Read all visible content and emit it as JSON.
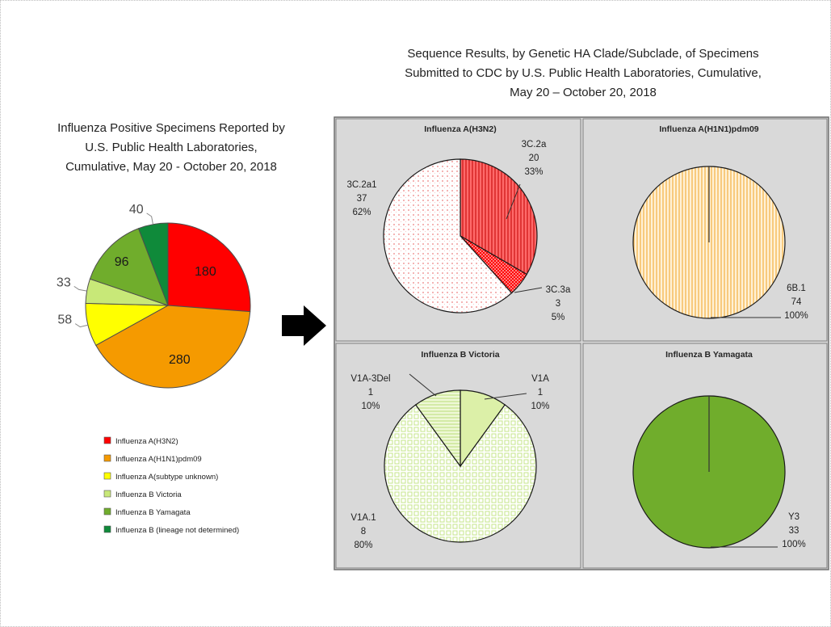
{
  "colors": {
    "h3n2": "#ff0000",
    "h1n1": "#f59a00",
    "a_unknown": "#ffff00",
    "b_victoria": "#c8e878",
    "b_yamagata": "#70ad2c",
    "b_lineage": "#0f8a3a",
    "panel_bg": "#d9d9d9",
    "h3n2_light": "#fde3e3",
    "h1n1_light": "#fde8c4",
    "vic_light": "#f6fbe6"
  },
  "left_title_lines": [
    "Influenza Positive Specimens Reported by",
    "U.S. Public Health Laboratories,",
    "Cumulative, May 20 - October 20, 2018"
  ],
  "right_title_lines": [
    "Sequence Results, by Genetic HA Clade/Subclade, of Specimens",
    "Submitted to CDC by U.S. Public Health Laboratories, Cumulative,",
    "May 20 – October 20, 2018"
  ],
  "chart_data": [
    {
      "type": "pie",
      "title": "Influenza Positive Specimens Reported by U.S. Public Health Laboratories, Cumulative, May 20 - October 20, 2018",
      "categories": [
        "Influenza A(H3N2)",
        "Influenza A(H1N1)pdm09",
        "Influenza A(subtype unknown)",
        "Influenza B Victoria",
        "Influenza B Yamagata",
        "Influenza B (lineage not determined)"
      ],
      "values": [
        180,
        280,
        58,
        33,
        96,
        40
      ],
      "data_labels": [
        "180",
        "280",
        "58",
        "33",
        "96",
        "40"
      ],
      "legend_position": "bottom"
    },
    {
      "type": "pie",
      "title": "Influenza A(H3N2)",
      "categories": [
        "3C.2a",
        "3C.3a",
        "3C.2a1"
      ],
      "values": [
        20,
        3,
        37
      ],
      "percents": [
        "33%",
        "5%",
        "62%"
      ]
    },
    {
      "type": "pie",
      "title": "Influenza A(H1N1)pdm09",
      "categories": [
        "6B.1"
      ],
      "values": [
        74
      ],
      "percents": [
        "100%"
      ]
    },
    {
      "type": "pie",
      "title": "Influenza B Victoria",
      "categories": [
        "V1A",
        "V1A.1",
        "V1A-3Del"
      ],
      "values": [
        1,
        8,
        1
      ],
      "percents": [
        "10%",
        "80%",
        "10%"
      ]
    },
    {
      "type": "pie",
      "title": "Influenza B Yamagata",
      "categories": [
        "Y3"
      ],
      "values": [
        33
      ],
      "percents": [
        "100%"
      ]
    }
  ]
}
